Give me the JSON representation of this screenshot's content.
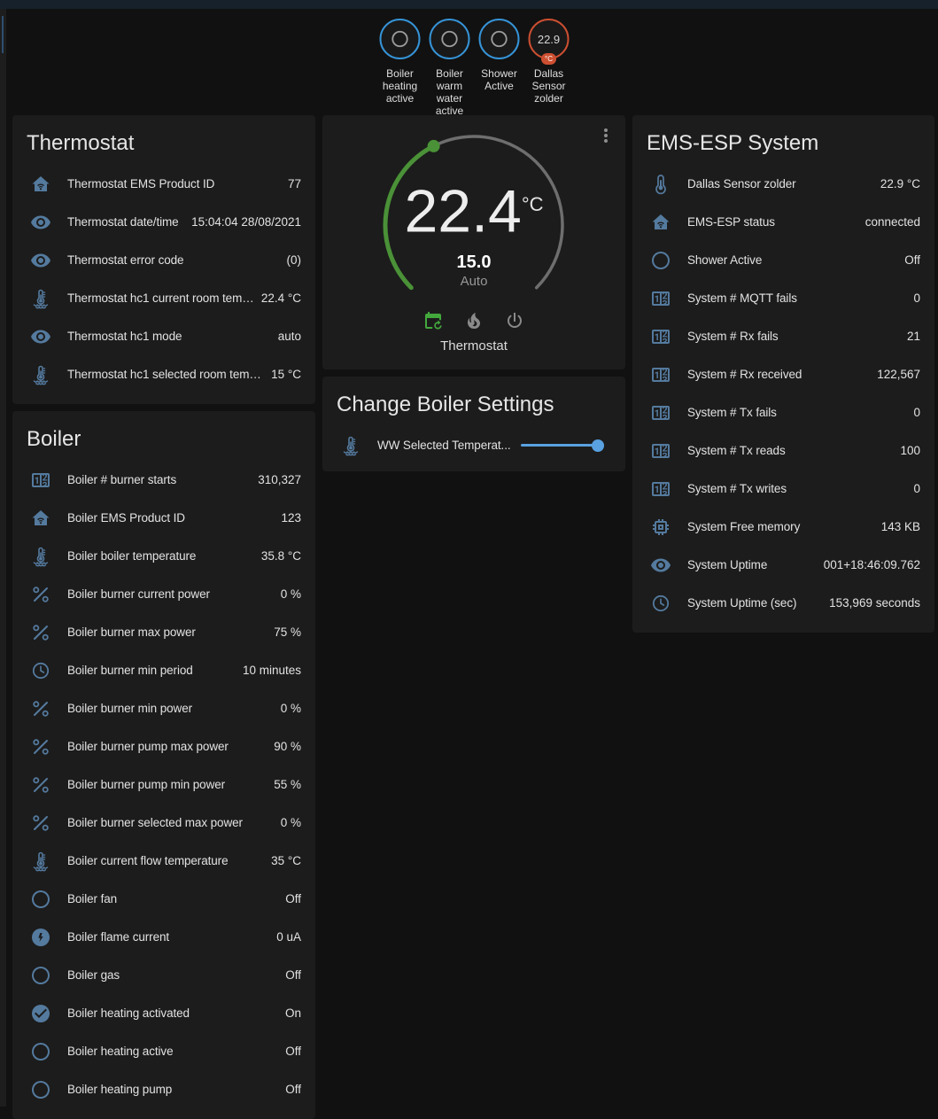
{
  "colors": {
    "page_bg": "#111111",
    "card_bg": "#1c1c1c",
    "topstrip": "#16212b",
    "icon_blue": "#547a9e",
    "badge_blue": "#3694d8",
    "badge_orange": "#cd4f31",
    "arc_green": "#4a9137",
    "arc_gray": "#6e6e6e",
    "mode_green": "#43a83c",
    "slider_blue": "#59a1e0"
  },
  "badges": [
    {
      "icon": "radiobox-blank",
      "label": "Boiler heating active",
      "style": "blue"
    },
    {
      "icon": "radiobox-blank",
      "label": "Boiler warm water active",
      "style": "blue"
    },
    {
      "icon": "radiobox-blank",
      "label": "Shower Active",
      "style": "blue"
    },
    {
      "value": "22.9",
      "unit": "°C",
      "label": "Dallas Sensor zolder",
      "style": "orange"
    }
  ],
  "thermostat_card": {
    "title": "Thermostat",
    "rows": [
      {
        "icon": "home-wifi",
        "label": "Thermostat EMS Product ID",
        "value": "77"
      },
      {
        "icon": "eye",
        "label": "Thermostat date/time",
        "value": "15:04:04 28/08/2021"
      },
      {
        "icon": "eye",
        "label": "Thermostat error code",
        "value": "(0)"
      },
      {
        "icon": "thermometer-water",
        "label": "Thermostat hc1 current room temper...",
        "value": "22.4 °C"
      },
      {
        "icon": "eye",
        "label": "Thermostat hc1 mode",
        "value": "auto"
      },
      {
        "icon": "thermometer-water",
        "label": "Thermostat hc1 selected room temper...",
        "value": "15 °C"
      }
    ]
  },
  "boiler_card": {
    "title": "Boiler",
    "rows": [
      {
        "icon": "counter",
        "label": "Boiler # burner starts",
        "value": "310,327"
      },
      {
        "icon": "home-wifi",
        "label": "Boiler EMS Product ID",
        "value": "123"
      },
      {
        "icon": "thermometer-water",
        "label": "Boiler boiler temperature",
        "value": "35.8 °C"
      },
      {
        "icon": "percent",
        "label": "Boiler burner current power",
        "value": "0 %"
      },
      {
        "icon": "percent",
        "label": "Boiler burner max power",
        "value": "75 %"
      },
      {
        "icon": "clock",
        "label": "Boiler burner min period",
        "value": "10 minutes"
      },
      {
        "icon": "percent",
        "label": "Boiler burner min power",
        "value": "0 %"
      },
      {
        "icon": "percent",
        "label": "Boiler burner pump max power",
        "value": "90 %"
      },
      {
        "icon": "percent",
        "label": "Boiler burner pump min power",
        "value": "55 %"
      },
      {
        "icon": "percent",
        "label": "Boiler burner selected max power",
        "value": "0 %"
      },
      {
        "icon": "thermometer-water",
        "label": "Boiler current flow temperature",
        "value": "35 °C"
      },
      {
        "icon": "circle-outline",
        "label": "Boiler fan",
        "value": "Off"
      },
      {
        "icon": "flash-circle",
        "label": "Boiler flame current",
        "value": "0 uA"
      },
      {
        "icon": "circle-outline",
        "label": "Boiler gas",
        "value": "Off"
      },
      {
        "icon": "check-circle",
        "label": "Boiler heating activated",
        "value": "On"
      },
      {
        "icon": "circle-outline",
        "label": "Boiler heating active",
        "value": "Off"
      },
      {
        "icon": "circle-outline",
        "label": "Boiler heating pump",
        "value": "Off"
      }
    ]
  },
  "climate_card": {
    "current_temp": "22.4",
    "unit": "°C",
    "target_temp": "15.0",
    "mode": "Auto",
    "entity_name": "Thermostat",
    "menu_icon": "dots-vertical",
    "modes": [
      {
        "icon": "calendar-sync",
        "active": true
      },
      {
        "icon": "fire",
        "active": false
      },
      {
        "icon": "power",
        "active": false
      }
    ]
  },
  "settings_card": {
    "title": "Change Boiler Settings",
    "row": {
      "icon": "thermometer-water",
      "label": "WW Selected Temperat...",
      "slider_percent": 100
    }
  },
  "ems_card": {
    "title": "EMS-ESP System",
    "rows": [
      {
        "icon": "thermometer",
        "label": "Dallas Sensor zolder",
        "value": "22.9 °C"
      },
      {
        "icon": "home-wifi",
        "label": "EMS-ESP status",
        "value": "connected"
      },
      {
        "icon": "circle-outline",
        "label": "Shower Active",
        "value": "Off"
      },
      {
        "icon": "counter",
        "label": "System # MQTT fails",
        "value": "0"
      },
      {
        "icon": "counter",
        "label": "System # Rx fails",
        "value": "21"
      },
      {
        "icon": "counter",
        "label": "System # Rx received",
        "value": "122,567"
      },
      {
        "icon": "counter",
        "label": "System # Tx fails",
        "value": "0"
      },
      {
        "icon": "counter",
        "label": "System # Tx reads",
        "value": "100"
      },
      {
        "icon": "counter",
        "label": "System # Tx writes",
        "value": "0"
      },
      {
        "icon": "chip",
        "label": "System Free memory",
        "value": "143 KB"
      },
      {
        "icon": "eye",
        "label": "System Uptime",
        "value": "001+18:46:09.762"
      },
      {
        "icon": "clock",
        "label": "System Uptime (sec)",
        "value": "153,969 seconds"
      }
    ]
  }
}
